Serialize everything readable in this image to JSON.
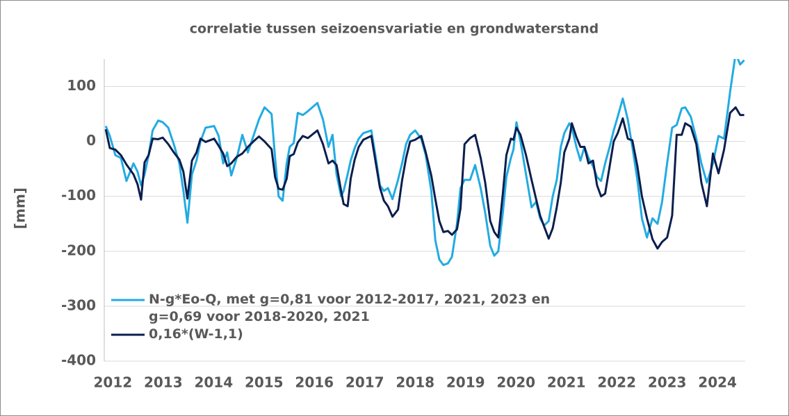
{
  "chart_data": {
    "type": "line",
    "title": "correlatie tussen seizoensvariatie en grondwaterstand",
    "y_label": "[mm]",
    "x": [
      2011.86,
      2011.94,
      2012.05,
      2012.16,
      2012.27,
      2012.41,
      2012.49,
      2012.56,
      2012.63,
      2012.71,
      2012.79,
      2012.9,
      2012.99,
      2013.1,
      2013.21,
      2013.32,
      2013.4,
      2013.48,
      2013.57,
      2013.66,
      2013.74,
      2013.84,
      2014.01,
      2014.1,
      2014.19,
      2014.27,
      2014.35,
      2014.46,
      2014.57,
      2014.68,
      2014.79,
      2014.9,
      2015.01,
      2015.15,
      2015.22,
      2015.29,
      2015.37,
      2015.45,
      2015.51,
      2015.59,
      2015.67,
      2015.77,
      2015.87,
      2016.06,
      2016.17,
      2016.28,
      2016.36,
      2016.44,
      2016.53,
      2016.58,
      2016.66,
      2016.72,
      2016.8,
      2016.88,
      2016.97,
      2017.13,
      2017.22,
      2017.3,
      2017.38,
      2017.46,
      2017.55,
      2017.66,
      2017.74,
      2017.82,
      2017.9,
      2018.0,
      2018.12,
      2018.21,
      2018.32,
      2018.4,
      2018.48,
      2018.56,
      2018.65,
      2018.73,
      2018.83,
      2018.9,
      2018.98,
      2019.09,
      2019.19,
      2019.3,
      2019.39,
      2019.49,
      2019.57,
      2019.65,
      2019.74,
      2019.81,
      2019.9,
      2019.95,
      2020.01,
      2020.09,
      2020.2,
      2020.31,
      2020.4,
      2020.48,
      2020.56,
      2020.65,
      2020.73,
      2020.81,
      2020.89,
      2020.96,
      2021.06,
      2021.11,
      2021.2,
      2021.28,
      2021.36,
      2021.44,
      2021.53,
      2021.61,
      2021.69,
      2021.77,
      2021.86,
      2021.94,
      2022.02,
      2022.12,
      2022.22,
      2022.31,
      2022.41,
      2022.5,
      2022.6,
      2022.71,
      2022.81,
      2022.9,
      2023.0,
      2023.1,
      2023.19,
      2023.29,
      2023.36,
      2023.47,
      2023.58,
      2023.68,
      2023.79,
      2023.91,
      2024.02,
      2024.13,
      2024.25,
      2024.36,
      2024.45,
      2024.53
    ],
    "series": [
      {
        "name": "N-g*Eo-Q, met g=0,81 voor 2012-2017, 2021, 2023 en g=0,69 voor 2018-2020, 2021",
        "color": "#22abe2",
        "values": [
          28,
          10,
          -25,
          -30,
          -72,
          -40,
          -55,
          -80,
          -60,
          -25,
          20,
          38,
          35,
          25,
          -5,
          -40,
          -90,
          -148,
          -60,
          -35,
          0,
          25,
          28,
          10,
          -40,
          -20,
          -62,
          -30,
          12,
          -20,
          10,
          40,
          62,
          50,
          -30,
          -100,
          -108,
          -40,
          -10,
          -3,
          52,
          48,
          55,
          70,
          40,
          -10,
          12,
          -60,
          -100,
          -90,
          -60,
          -35,
          -12,
          5,
          15,
          20,
          -30,
          -80,
          -90,
          -85,
          -105,
          -70,
          -40,
          -5,
          12,
          20,
          5,
          -25,
          -90,
          -180,
          -215,
          -225,
          -222,
          -210,
          -150,
          -85,
          -70,
          -70,
          -43,
          -85,
          -130,
          -190,
          -208,
          -200,
          -130,
          -65,
          -30,
          -15,
          35,
          0,
          -60,
          -120,
          -110,
          -140,
          -153,
          -145,
          -100,
          -70,
          -10,
          15,
          33,
          25,
          -10,
          -35,
          -10,
          -30,
          -45,
          -65,
          -72,
          -40,
          -10,
          20,
          45,
          78,
          40,
          -10,
          -70,
          -140,
          -175,
          -140,
          -150,
          -110,
          -40,
          25,
          30,
          60,
          62,
          45,
          5,
          -40,
          -75,
          -40,
          10,
          5,
          90,
          160,
          140,
          148
        ]
      },
      {
        "name": "0,16*(W-1,1)",
        "color": "#0b1e4e",
        "values": [
          22,
          -12,
          -15,
          -25,
          -42,
          -60,
          -78,
          -106,
          -38,
          -25,
          5,
          4,
          7,
          -5,
          -20,
          -33,
          -55,
          -104,
          -35,
          -20,
          5,
          -1,
          5,
          -8,
          -22,
          -45,
          -40,
          -28,
          -22,
          -10,
          0,
          9,
          0,
          -14,
          -65,
          -86,
          -88,
          -68,
          -27,
          -23,
          -2,
          10,
          6,
          20,
          -5,
          -40,
          -35,
          -43,
          -90,
          -114,
          -118,
          -68,
          -33,
          -10,
          3,
          10,
          -40,
          -84,
          -108,
          -118,
          -137,
          -124,
          -71,
          -30,
          0,
          3,
          10,
          -20,
          -62,
          -105,
          -145,
          -165,
          -163,
          -170,
          -160,
          -122,
          -5,
          6,
          12,
          -30,
          -75,
          -145,
          -165,
          -175,
          -95,
          -25,
          5,
          3,
          25,
          12,
          -25,
          -70,
          -105,
          -135,
          -155,
          -177,
          -158,
          -120,
          -75,
          -20,
          5,
          33,
          8,
          -10,
          -10,
          -40,
          -35,
          -80,
          -100,
          -95,
          -45,
          0,
          15,
          42,
          5,
          2,
          -45,
          -100,
          -140,
          -178,
          -195,
          -183,
          -175,
          -135,
          12,
          12,
          33,
          27,
          -5,
          -75,
          -118,
          -22,
          -58,
          -15,
          52,
          62,
          48,
          48
        ]
      }
    ],
    "xlim": [
      2011.83,
      2024.55
    ],
    "xticks": [
      2012,
      2013,
      2014,
      2015,
      2016,
      2017,
      2018,
      2019,
      2020,
      2021,
      2022,
      2023,
      2024
    ],
    "ylim": [
      -400,
      150
    ],
    "yticks": [
      -400,
      -300,
      -200,
      -100,
      0,
      100
    ],
    "grid": true,
    "legend": "lower left"
  }
}
